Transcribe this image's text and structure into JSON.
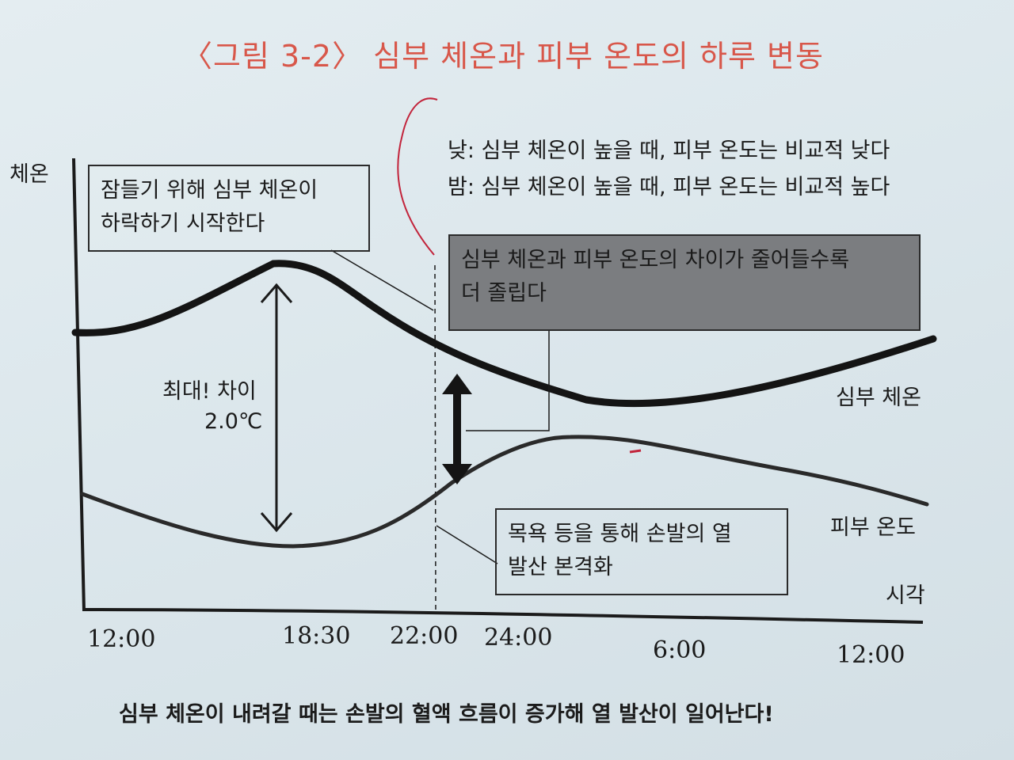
{
  "title": "〈그림 3-2〉 심부 체온과 피부 온도의 하루 변동",
  "notes": [
    "낮: 심부 체온이 높을 때, 피부 온도는 비교적 낮다",
    "밤: 심부 체온이 높을 때, 피부 온도는 비교적 높다"
  ],
  "callouts": {
    "sleep_start": [
      "잠들기 위해 심부 체온이",
      "하락하기 시작한다"
    ],
    "difference": [
      "심부 체온과 피부 온도의 차이가 줄어들수록",
      "더 졸립다"
    ],
    "bath": [
      "목욕 등을 통해 손발의 열",
      "발산 본격화"
    ]
  },
  "axes": {
    "y_label": "체온",
    "x_label": "시각",
    "ticks": [
      "12:00",
      "18:30",
      "22:00",
      "24:00",
      "6:00",
      "12:00"
    ]
  },
  "curves": {
    "core_label": "심부 체온",
    "skin_label": "피부 온도"
  },
  "max_diff": {
    "line1": "최대! 차이",
    "line2": "2.0℃"
  },
  "caption": "심부 체온이 내려갈 때는 손발의 혈액 흐름이 증가해 열 발산이 일어난다!",
  "colors": {
    "title": "#d8574a",
    "ink": "#1b1b1b",
    "dark_box": "#7b7d80",
    "red_ink": "#c2243b"
  }
}
